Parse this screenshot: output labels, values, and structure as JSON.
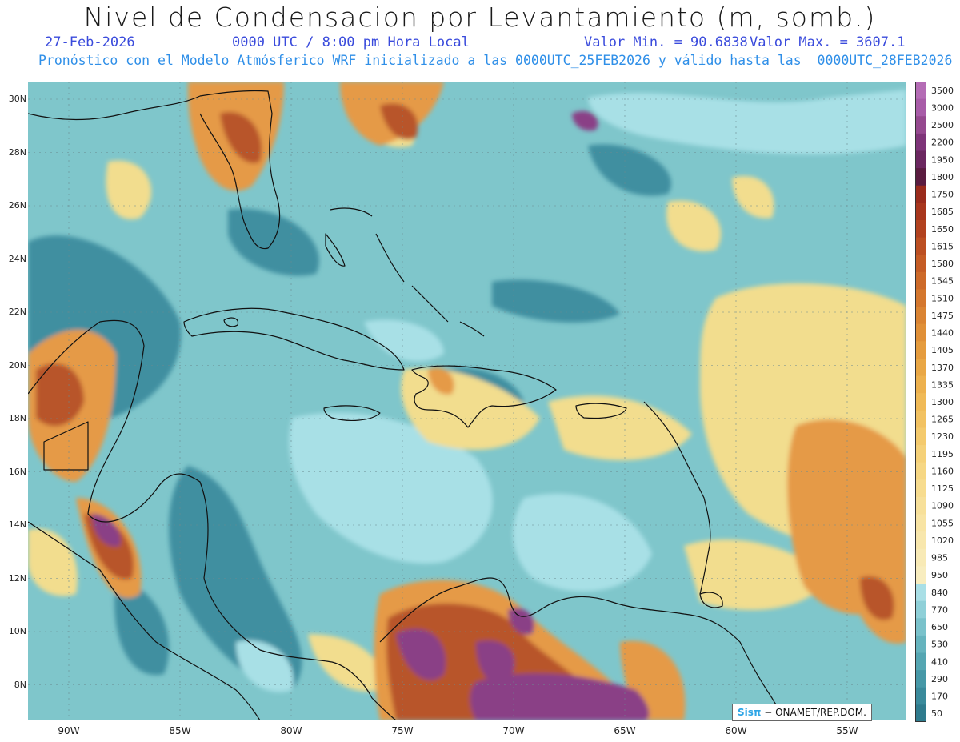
{
  "header": {
    "title": "Nivel de Condensacion por Levantamiento (m, somb.)",
    "date": "27-Feb-2026",
    "time": "0000 UTC / 8:00 pm Hora Local",
    "valor_min": "Valor Min. = 90.6838",
    "valor_max": "Valor Max. = 3607.1",
    "description": "Pronóstico con el Modelo Atmósferico WRF inicializado a las 0000UTC_25FEB2026 y válido hasta las  0000UTC_28FEB2026"
  },
  "map": {
    "lat_labels": [
      "30N",
      "28N",
      "26N",
      "24N",
      "22N",
      "20N",
      "18N",
      "16N",
      "14N",
      "12N",
      "10N",
      "8N"
    ],
    "lon_labels": [
      "90W",
      "85W",
      "80W",
      "75W",
      "70W",
      "65W",
      "60W",
      "55W"
    ],
    "colors": {
      "background_teal": "#7fc6cb",
      "deep_teal": "#3f8fa0",
      "light_cyan": "#a8e0e6",
      "yellow": "#f2dd8e",
      "orange": "#e59a46",
      "brown": "#b8542a",
      "purple": "#8a3f86",
      "coast": "#111111"
    }
  },
  "legend": {
    "labels": [
      "3500",
      "3000",
      "2500",
      "2200",
      "1950",
      "1800",
      "1750",
      "1685",
      "1650",
      "1615",
      "1580",
      "1545",
      "1510",
      "1475",
      "1440",
      "1405",
      "1370",
      "1335",
      "1300",
      "1265",
      "1230",
      "1195",
      "1160",
      "1125",
      "1090",
      "1055",
      "1020",
      "985",
      "950",
      "840",
      "770",
      "650",
      "530",
      "410",
      "290",
      "170",
      "50"
    ],
    "colors": [
      "#b46cb5",
      "#a85ca8",
      "#95498f",
      "#7e3479",
      "#6b2760",
      "#5a1c40",
      "#9a2b1c",
      "#a8361d",
      "#b2421f",
      "#bc4f22",
      "#c55c25",
      "#cd6a29",
      "#d4772e",
      "#da8433",
      "#e09038",
      "#e59c3e",
      "#e9a745",
      "#edb14e",
      "#f0ba57",
      "#f2c262",
      "#f4ca6d",
      "#f5d179",
      "#f6d784",
      "#f7dc8f",
      "#f7e09a",
      "#f8e4a4",
      "#f8e7ad",
      "#f8eab6",
      "#f8edbf",
      "#a9dfe6",
      "#8fd0d8",
      "#7ac2cb",
      "#66b4be",
      "#55a6b2",
      "#4698a7",
      "#3a8a9b",
      "#2f7b8d"
    ]
  },
  "footer": {
    "logo": "Sisπ",
    "org": " − ONAMET/REP.DOM."
  }
}
